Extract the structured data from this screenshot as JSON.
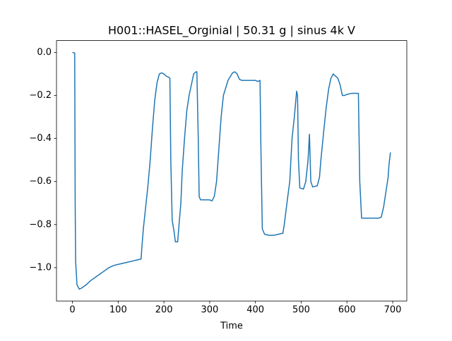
{
  "chart_data": {
    "type": "line",
    "title": "H001::HASEL_Orginial | 50.31 g | sinus 4k V",
    "xlabel": "Time",
    "color": "#1f77b4",
    "x": [
      0,
      5,
      6,
      7,
      10,
      15,
      20,
      30,
      40,
      50,
      60,
      70,
      80,
      90,
      100,
      110,
      120,
      130,
      140,
      150,
      152,
      155,
      160,
      165,
      170,
      175,
      180,
      185,
      190,
      195,
      200,
      205,
      210,
      213,
      215,
      218,
      222,
      225,
      230,
      233,
      237,
      240,
      245,
      250,
      255,
      260,
      265,
      270,
      272,
      275,
      277,
      280,
      290,
      300,
      305,
      310,
      315,
      320,
      325,
      330,
      340,
      350,
      355,
      360,
      365,
      370,
      380,
      390,
      400,
      405,
      410,
      412,
      415,
      420,
      430,
      440,
      450,
      460,
      463,
      470,
      475,
      480,
      485,
      490,
      492,
      494,
      497,
      505,
      510,
      515,
      518,
      521,
      525,
      535,
      540,
      543,
      550,
      555,
      560,
      565,
      570,
      575,
      580,
      585,
      590,
      595,
      600,
      610,
      620,
      625,
      628,
      632,
      640,
      650,
      660,
      670,
      675,
      680,
      685,
      690,
      692,
      695
    ],
    "values": [
      0,
      -0.003,
      -0.7,
      -0.97,
      -1.08,
      -1.1,
      -1.095,
      -1.08,
      -1.06,
      -1.045,
      -1.03,
      -1.015,
      -1.0,
      -0.99,
      -0.985,
      -0.98,
      -0.975,
      -0.97,
      -0.965,
      -0.96,
      -0.9,
      -0.82,
      -0.72,
      -0.62,
      -0.5,
      -0.35,
      -0.22,
      -0.14,
      -0.1,
      -0.095,
      -0.1,
      -0.11,
      -0.115,
      -0.12,
      -0.5,
      -0.78,
      -0.83,
      -0.88,
      -0.88,
      -0.8,
      -0.7,
      -0.55,
      -0.4,
      -0.27,
      -0.2,
      -0.15,
      -0.1,
      -0.09,
      -0.09,
      -0.4,
      -0.67,
      -0.685,
      -0.685,
      -0.685,
      -0.69,
      -0.67,
      -0.6,
      -0.45,
      -0.3,
      -0.2,
      -0.13,
      -0.095,
      -0.09,
      -0.1,
      -0.125,
      -0.13,
      -0.13,
      -0.13,
      -0.13,
      -0.135,
      -0.13,
      -0.45,
      -0.82,
      -0.845,
      -0.85,
      -0.85,
      -0.845,
      -0.84,
      -0.8,
      -0.68,
      -0.6,
      -0.4,
      -0.3,
      -0.18,
      -0.2,
      -0.5,
      -0.63,
      -0.635,
      -0.6,
      -0.5,
      -0.38,
      -0.6,
      -0.625,
      -0.62,
      -0.58,
      -0.5,
      -0.35,
      -0.25,
      -0.17,
      -0.12,
      -0.1,
      -0.11,
      -0.12,
      -0.15,
      -0.2,
      -0.2,
      -0.195,
      -0.19,
      -0.19,
      -0.19,
      -0.6,
      -0.77,
      -0.77,
      -0.77,
      -0.77,
      -0.77,
      -0.765,
      -0.72,
      -0.65,
      -0.58,
      -0.52,
      -0.465
    ],
    "xlim": [
      -34.8,
      730.8
    ],
    "ylim": [
      -1.155,
      0.055
    ],
    "xticks": [
      0,
      100,
      200,
      300,
      400,
      500,
      600,
      700
    ],
    "yticks": [
      {
        "value": -1.0,
        "label": "−1.0"
      },
      {
        "value": -0.8,
        "label": "−0.8"
      },
      {
        "value": -0.6,
        "label": "−0.6"
      },
      {
        "value": -0.4,
        "label": "−0.4"
      },
      {
        "value": -0.2,
        "label": "−0.2"
      },
      {
        "value": 0,
        "label": "0.0"
      }
    ]
  }
}
